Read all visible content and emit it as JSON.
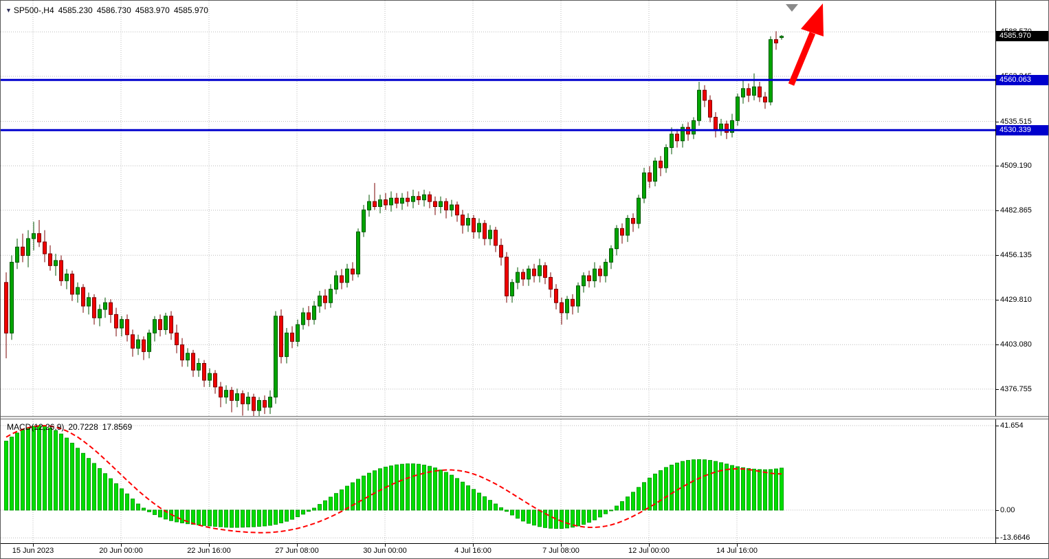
{
  "header": {
    "symbol_timeframe": "SP500-,H4",
    "open": "4585.230",
    "high": "4586.730",
    "low": "4583.970",
    "close": "4585.970"
  },
  "macd_legend": {
    "name": "MACD(12,26,9)",
    "main_value": "20.7228",
    "signal_value": "17.8569"
  },
  "price_axis": {
    "labels": [
      {
        "text": "4588.570",
        "price": 4588.57
      },
      {
        "text": "4562.245",
        "price": 4562.245
      },
      {
        "text": "4535.515",
        "price": 4535.515
      },
      {
        "text": "4509.190",
        "price": 4509.19
      },
      {
        "text": "4482.865",
        "price": 4482.865
      },
      {
        "text": "4456.135",
        "price": 4456.135
      },
      {
        "text": "4429.810",
        "price": 4429.81
      },
      {
        "text": "4403.080",
        "price": 4403.08
      },
      {
        "text": "4376.755",
        "price": 4376.755
      }
    ],
    "badges": [
      {
        "text": "4585.970",
        "price": 4585.97,
        "bg": "#000000"
      },
      {
        "text": "4560.063",
        "price": 4560.063,
        "bg": "#0000CD"
      },
      {
        "text": "4530.339",
        "price": 4530.339,
        "bg": "#0000CD"
      }
    ]
  },
  "macd_axis": {
    "labels": [
      {
        "text": "41.654",
        "value": 41.654
      },
      {
        "text": "0.00",
        "value": 0
      },
      {
        "text": "-13.6646",
        "value": -13.6646
      }
    ]
  },
  "time_axis": {
    "ticks": [
      {
        "label": "15 Jun 2023",
        "x": 47
      },
      {
        "label": "20 Jun 00:00",
        "x": 175
      },
      {
        "label": "22 Jun 16:00",
        "x": 303
      },
      {
        "label": "27 Jun 08:00",
        "x": 431
      },
      {
        "label": "30 Jun 00:00",
        "x": 559
      },
      {
        "label": "4 Jul 16:00",
        "x": 687
      },
      {
        "label": "7 Jul 08:00",
        "x": 815
      },
      {
        "label": "12 Jul 00:00",
        "x": 943
      },
      {
        "label": "14 Jul 16:00",
        "x": 1071
      }
    ]
  },
  "colors": {
    "grid": "#bbbbbb",
    "candle_up": "#00a400",
    "candle_up_border": "#005500",
    "candle_down": "#ee0000",
    "candle_down_border": "#7a0000",
    "level_line": "#0000CD",
    "macd_bar": "#00dd00",
    "macd_bar_border": "#00a000",
    "macd_signal": "#ff0000",
    "arrow": "#ff0000",
    "marker": "#8a8a8a"
  },
  "annotations": {
    "trend_arrow": {
      "type": "arrow-up",
      "color": "#ff0000",
      "shaft": [
        [
          1150,
          122
        ],
        [
          1181,
          47
        ]
      ],
      "head": [
        [
          1196,
          4
        ],
        [
          1197,
          52
        ],
        [
          1164,
          41
        ]
      ]
    },
    "scroll_marker": {
      "color": "#8a8a8a",
      "points": [
        [
          1142,
          5
        ],
        [
          1160,
          5
        ],
        [
          1151,
          16
        ]
      ]
    }
  },
  "chart_data": [
    {
      "type": "candlestick",
      "title": "SP500- H4 candlestick chart",
      "ylim": [
        4360.8,
        4607.1
      ],
      "levels": [
        4560.063,
        4530.339
      ],
      "x_tick_labels": [
        "15 Jun 2023",
        "20 Jun 00:00",
        "22 Jun 16:00",
        "27 Jun 08:00",
        "30 Jun 00:00",
        "4 Jul 16:00",
        "7 Jul 08:00",
        "12 Jul 00:00",
        "14 Jul 16:00"
      ],
      "ohlc": [
        [
          4440,
          4446,
          4395,
          4410
        ],
        [
          4410,
          4456,
          4406,
          4452
        ],
        [
          4452,
          4466,
          4448,
          4461
        ],
        [
          4461,
          4469,
          4452,
          4456
        ],
        [
          4456,
          4471,
          4449,
          4466
        ],
        [
          4466,
          4476,
          4459,
          4469
        ],
        [
          4469,
          4477,
          4461,
          4464
        ],
        [
          4464,
          4471,
          4452,
          4457
        ],
        [
          4457,
          4462,
          4447,
          4450
        ],
        [
          4450,
          4457,
          4444,
          4453
        ],
        [
          4453,
          4456,
          4438,
          4441
        ],
        [
          4441,
          4448,
          4436,
          4445
        ],
        [
          4445,
          4447,
          4429,
          4433
        ],
        [
          4433,
          4440,
          4428,
          4437
        ],
        [
          4437,
          4439,
          4422,
          4426
        ],
        [
          4426,
          4434,
          4421,
          4431
        ],
        [
          4431,
          4433,
          4415,
          4419
        ],
        [
          4419,
          4427,
          4414,
          4424
        ],
        [
          4424,
          4431,
          4419,
          4428
        ],
        [
          4428,
          4430,
          4416,
          4421
        ],
        [
          4421,
          4425,
          4408,
          4413
        ],
        [
          4413,
          4420,
          4408,
          4418
        ],
        [
          4418,
          4421,
          4405,
          4409
        ],
        [
          4409,
          4412,
          4396,
          4401
        ],
        [
          4401,
          4409,
          4397,
          4406
        ],
        [
          4406,
          4408,
          4394,
          4399
        ],
        [
          4399,
          4412,
          4395,
          4410
        ],
        [
          4410,
          4420,
          4405,
          4418
        ],
        [
          4418,
          4421,
          4408,
          4412
        ],
        [
          4412,
          4422,
          4409,
          4420
        ],
        [
          4420,
          4423,
          4406,
          4410
        ],
        [
          4410,
          4415,
          4398,
          4403
        ],
        [
          4403,
          4407,
          4390,
          4394
        ],
        [
          4394,
          4401,
          4390,
          4398
        ],
        [
          4398,
          4400,
          4384,
          4388
        ],
        [
          4388,
          4395,
          4384,
          4392
        ],
        [
          4392,
          4394,
          4378,
          4382
        ],
        [
          4382,
          4389,
          4378,
          4386
        ],
        [
          4386,
          4388,
          4374,
          4378
        ],
        [
          4378,
          4381,
          4366,
          4372
        ],
        [
          4372,
          4379,
          4368,
          4376
        ],
        [
          4376,
          4378,
          4363,
          4370
        ],
        [
          4370,
          4377,
          4366,
          4374
        ],
        [
          4374,
          4376,
          4361,
          4368
        ],
        [
          4368,
          4375,
          4364,
          4372
        ],
        [
          4372,
          4374,
          4359,
          4364
        ],
        [
          4364,
          4372,
          4360,
          4370
        ],
        [
          4370,
          4373,
          4362,
          4366
        ],
        [
          4366,
          4376,
          4362,
          4372
        ],
        [
          4372,
          4423,
          4368,
          4420
        ],
        [
          4420,
          4424,
          4392,
          4396
        ],
        [
          4396,
          4413,
          4392,
          4410
        ],
        [
          4410,
          4414,
          4401,
          4405
        ],
        [
          4405,
          4418,
          4402,
          4415
        ],
        [
          4415,
          4425,
          4412,
          4422
        ],
        [
          4422,
          4426,
          4414,
          4418
        ],
        [
          4418,
          4429,
          4415,
          4426
        ],
        [
          4426,
          4435,
          4422,
          4432
        ],
        [
          4432,
          4436,
          4424,
          4428
        ],
        [
          4428,
          4439,
          4425,
          4436
        ],
        [
          4436,
          4447,
          4433,
          4444
        ],
        [
          4444,
          4448,
          4436,
          4440
        ],
        [
          4440,
          4451,
          4437,
          4448
        ],
        [
          4448,
          4452,
          4441,
          4445
        ],
        [
          4445,
          4472,
          4443,
          4470
        ],
        [
          4470,
          4486,
          4467,
          4483
        ],
        [
          4483,
          4492,
          4479,
          4488
        ],
        [
          4488,
          4499,
          4483,
          4485
        ],
        [
          4485,
          4492,
          4481,
          4489
        ],
        [
          4489,
          4493,
          4483,
          4486
        ],
        [
          4486,
          4494,
          4482,
          4490
        ],
        [
          4490,
          4493,
          4484,
          4487
        ],
        [
          4487,
          4493,
          4483,
          4490
        ],
        [
          4490,
          4494,
          4485,
          4488
        ],
        [
          4488,
          4495,
          4484,
          4491
        ],
        [
          4491,
          4494,
          4486,
          4489
        ],
        [
          4489,
          4495,
          4485,
          4492
        ],
        [
          4492,
          4494,
          4484,
          4488
        ],
        [
          4488,
          4491,
          4480,
          4485
        ],
        [
          4485,
          4491,
          4481,
          4488
        ],
        [
          4488,
          4490,
          4478,
          4483
        ],
        [
          4483,
          4489,
          4479,
          4486
        ],
        [
          4486,
          4488,
          4476,
          4480
        ],
        [
          4480,
          4483,
          4469,
          4474
        ],
        [
          4474,
          4481,
          4470,
          4478
        ],
        [
          4478,
          4480,
          4466,
          4470
        ],
        [
          4470,
          4478,
          4466,
          4475
        ],
        [
          4475,
          4477,
          4462,
          4466
        ],
        [
          4466,
          4474,
          4462,
          4471
        ],
        [
          4471,
          4473,
          4458,
          4462
        ],
        [
          4462,
          4466,
          4450,
          4455
        ],
        [
          4455,
          4458,
          4428,
          4432
        ],
        [
          4432,
          4442,
          4428,
          4440
        ],
        [
          4440,
          4449,
          4436,
          4446
        ],
        [
          4446,
          4448,
          4438,
          4442
        ],
        [
          4442,
          4450,
          4438,
          4448
        ],
        [
          4448,
          4451,
          4440,
          4444
        ],
        [
          4444,
          4454,
          4440,
          4450
        ],
        [
          4450,
          4452,
          4439,
          4443
        ],
        [
          4443,
          4446,
          4431,
          4436
        ],
        [
          4436,
          4439,
          4424,
          4428
        ],
        [
          4428,
          4431,
          4415,
          4422
        ],
        [
          4422,
          4432,
          4418,
          4430
        ],
        [
          4430,
          4433,
          4421,
          4426
        ],
        [
          4426,
          4440,
          4422,
          4438
        ],
        [
          4438,
          4446,
          4434,
          4444
        ],
        [
          4444,
          4447,
          4437,
          4441
        ],
        [
          4441,
          4452,
          4437,
          4448
        ],
        [
          4448,
          4450,
          4440,
          4444
        ],
        [
          4444,
          4454,
          4440,
          4452
        ],
        [
          4452,
          4462,
          4448,
          4460
        ],
        [
          4460,
          4474,
          4456,
          4472
        ],
        [
          4472,
          4475,
          4463,
          4468
        ],
        [
          4468,
          4480,
          4464,
          4478
        ],
        [
          4478,
          4481,
          4470,
          4475
        ],
        [
          4475,
          4492,
          4472,
          4490
        ],
        [
          4490,
          4508,
          4487,
          4505
        ],
        [
          4505,
          4509,
          4496,
          4500
        ],
        [
          4500,
          4514,
          4497,
          4512
        ],
        [
          4512,
          4515,
          4503,
          4508
        ],
        [
          4508,
          4522,
          4505,
          4520
        ],
        [
          4520,
          4532,
          4516,
          4528
        ],
        [
          4528,
          4531,
          4520,
          4524
        ],
        [
          4524,
          4534,
          4520,
          4532
        ],
        [
          4532,
          4535,
          4524,
          4528
        ],
        [
          4528,
          4538,
          4525,
          4536
        ],
        [
          4536,
          4559,
          4533,
          4554
        ],
        [
          4554,
          4557,
          4544,
          4548
        ],
        [
          4548,
          4551,
          4535,
          4538
        ],
        [
          4538,
          4541,
          4526,
          4530
        ],
        [
          4530,
          4537,
          4527,
          4534
        ],
        [
          4534,
          4536,
          4525,
          4529
        ],
        [
          4529,
          4540,
          4526,
          4536
        ],
        [
          4536,
          4552,
          4533,
          4550
        ],
        [
          4550,
          4560,
          4546,
          4555
        ],
        [
          4555,
          4558,
          4547,
          4551
        ],
        [
          4551,
          4564,
          4548,
          4556
        ],
        [
          4556,
          4559,
          4547,
          4550
        ],
        [
          4550,
          4553,
          4543,
          4547
        ],
        [
          4547,
          4586,
          4545,
          4584
        ],
        [
          4584,
          4589,
          4578,
          4582
        ],
        [
          4585.23,
          4586.73,
          4583.97,
          4585.97
        ]
      ]
    },
    {
      "type": "bar",
      "title": "MACD(12,26,9)",
      "ylim": [
        -16.3,
        44.7
      ],
      "last_main": 20.7228,
      "last_signal": 17.8569,
      "histogram": [
        34,
        36,
        38,
        39.5,
        40.5,
        41.2,
        41.65,
        41.3,
        40.5,
        39.2,
        37.5,
        35.5,
        33,
        30.5,
        28,
        25.5,
        23,
        20.5,
        18,
        15.5,
        13,
        10.5,
        8,
        5.5,
        3,
        1,
        -0.8,
        -2.2,
        -3.4,
        -4.4,
        -5.2,
        -5.8,
        -6.3,
        -6.7,
        -7,
        -7.3,
        -7.6,
        -7.8,
        -8,
        -8.2,
        -8.4,
        -8.5,
        -8.5,
        -8.4,
        -8.3,
        -8.2,
        -8,
        -7.8,
        -7.5,
        -7,
        -6.3,
        -5.5,
        -4.5,
        -3.3,
        -2,
        -0.6,
        1,
        2.8,
        4.6,
        6.4,
        8.2,
        10,
        11.8,
        13.5,
        15.2,
        16.8,
        18.2,
        19.4,
        20.4,
        21.2,
        21.8,
        22.3,
        22.6,
        22.8,
        22.8,
        22.6,
        22.2,
        21.6,
        20.8,
        19.8,
        18.6,
        17.2,
        15.6,
        13.8,
        12,
        10.2,
        8.4,
        6.6,
        4.8,
        3,
        1.2,
        -0.6,
        -2.4,
        -4,
        -5.4,
        -6.5,
        -7.4,
        -8.1,
        -8.6,
        -8.9,
        -9,
        -9,
        -8.8,
        -8.4,
        -7.8,
        -7,
        -6,
        -4.8,
        -3.4,
        -1.8,
        0,
        2,
        4.2,
        6.5,
        8.8,
        11.2,
        13.6,
        15.8,
        17.8,
        19.5,
        21,
        22.2,
        23.2,
        24,
        24.5,
        24.8,
        24.9,
        24.8,
        24.5,
        24,
        23.4,
        22.7,
        22,
        21.4,
        20.9,
        20.5,
        20.2,
        20,
        19.9,
        20,
        20.3,
        20.72
      ],
      "signal": [
        36,
        37.5,
        38.8,
        39.8,
        40.6,
        41.2,
        41.5,
        41.6,
        41.4,
        40.9,
        40.1,
        39,
        37.6,
        36,
        34.1,
        32,
        29.8,
        27.4,
        24.9,
        22.4,
        19.8,
        17.2,
        14.6,
        12.1,
        9.6,
        7.3,
        5.1,
        3,
        1.1,
        -0.6,
        -2.1,
        -3.5,
        -4.7,
        -5.7,
        -6.6,
        -7.4,
        -8,
        -8.6,
        -9.1,
        -9.5,
        -9.9,
        -10.2,
        -10.5,
        -10.7,
        -10.9,
        -11,
        -11.1,
        -11.1,
        -11,
        -10.8,
        -10.5,
        -10.1,
        -9.6,
        -9,
        -8.3,
        -7.5,
        -6.6,
        -5.6,
        -4.5,
        -3.3,
        -2,
        -0.6,
        0.9,
        2.4,
        3.9,
        5.4,
        6.9,
        8.4,
        9.8,
        11.2,
        12.5,
        13.7,
        14.8,
        15.8,
        16.7,
        17.5,
        18.2,
        18.8,
        19.3,
        19.6,
        19.8,
        19.8,
        19.6,
        19.2,
        18.6,
        17.8,
        16.8,
        15.6,
        14.3,
        12.9,
        11.4,
        9.8,
        8.1,
        6.4,
        4.7,
        3,
        1.4,
        -0.2,
        -1.7,
        -3.1,
        -4.4,
        -5.5,
        -6.5,
        -7.3,
        -7.9,
        -8.3,
        -8.5,
        -8.5,
        -8.3,
        -7.9,
        -7.3,
        -6.5,
        -5.5,
        -4.3,
        -3,
        -1.6,
        -0.1,
        1.5,
        3.1,
        4.8,
        6.5,
        8.2,
        9.9,
        11.5,
        13,
        14.4,
        15.7,
        16.9,
        17.9,
        18.8,
        19.5,
        20,
        20.3,
        20.4,
        20.3,
        20,
        19.6,
        19.1,
        18.6,
        18.2,
        17.9,
        17.86
      ]
    }
  ]
}
